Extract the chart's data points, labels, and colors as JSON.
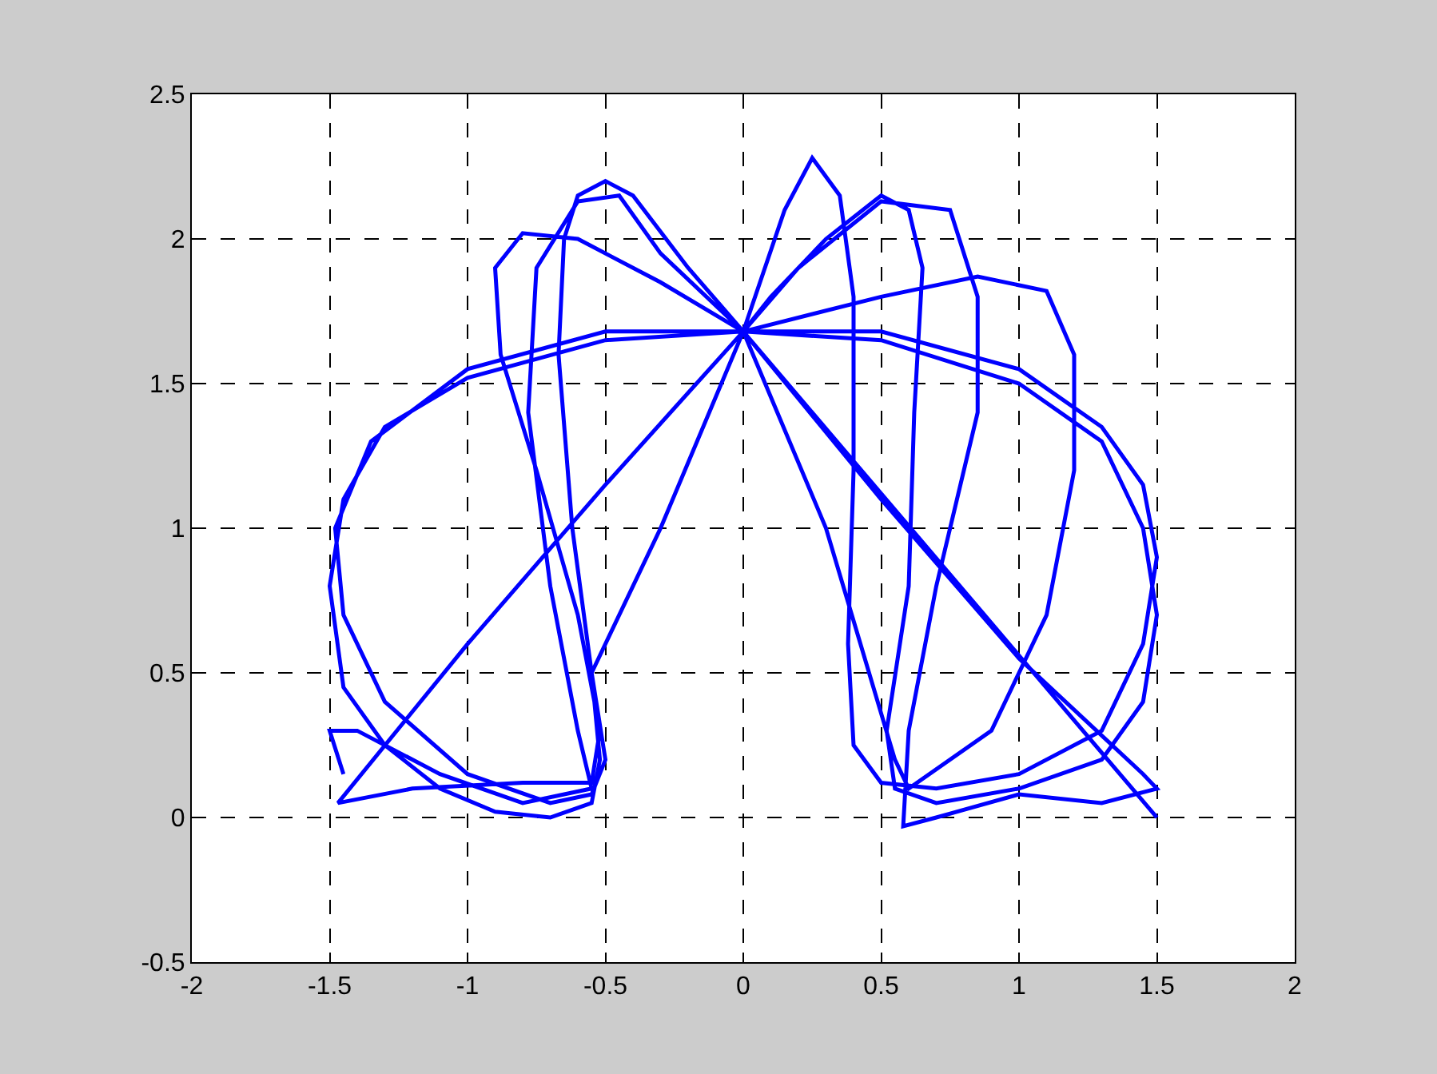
{
  "chart_data": {
    "type": "line",
    "color": "#0000ff",
    "line_style": "solid",
    "marker": "none",
    "grid": true,
    "x": [
      1.5,
      1.0,
      0.5,
      0,
      -0.2,
      -0.4,
      -0.5,
      -0.6,
      -0.65,
      -0.67,
      -0.62,
      -0.55,
      -0.52,
      -0.55,
      -0.7,
      -0.9,
      -1.1,
      -1.3,
      -1.45,
      -1.5,
      -1.45,
      -1.3,
      -1.0,
      -0.5,
      0,
      0.5,
      1.0,
      1.3,
      1.45,
      1.5,
      1.45,
      1.3,
      1.0,
      0.7,
      0.55,
      0.52,
      0.6,
      0.62,
      0.65,
      0.6,
      0.5,
      0.3,
      0.1,
      0,
      -0.5,
      -1.0,
      -1.47,
      -1.2,
      -0.8,
      -0.55,
      -0.52,
      -0.6,
      -0.75,
      -0.88,
      -0.9,
      -0.8,
      -0.6,
      -0.3,
      0,
      0.15,
      0.25,
      0.35,
      0.4,
      0.4,
      0.38,
      0.4,
      0.5,
      0.7,
      1.0,
      1.3,
      1.45,
      1.5,
      1.45,
      1.3,
      1.0,
      0.5,
      0,
      0.5,
      0.85,
      1.1,
      1.2,
      1.2,
      1.1,
      0.9,
      0.6,
      0.55,
      0.3,
      0,
      -0.5,
      -1.0,
      -1.35,
      -1.48,
      -1.45,
      -1.3,
      -1.0,
      -0.7,
      -0.55,
      -0.5,
      -0.55,
      -0.3,
      0,
      0.2,
      0.5,
      0.75,
      0.85,
      0.85,
      0.7,
      0.6,
      0.58,
      0.7,
      1.0,
      1.3,
      1.5,
      1.45,
      1.0,
      0.5,
      0,
      -0.3,
      -0.45,
      -0.6,
      -0.75,
      -0.78,
      -0.7,
      -0.6,
      -0.55,
      -0.8,
      -1.1,
      -1.4,
      -1.5,
      -1.45
    ],
    "values": [
      0,
      0.56,
      1.12,
      1.68,
      1.9,
      2.15,
      2.2,
      2.15,
      2.0,
      1.6,
      1.0,
      0.5,
      0.2,
      0.05,
      0,
      0.02,
      0.1,
      0.25,
      0.45,
      0.8,
      1.1,
      1.35,
      1.52,
      1.65,
      1.68,
      1.65,
      1.5,
      1.3,
      1.0,
      0.7,
      0.4,
      0.2,
      0.1,
      0.05,
      0.1,
      0.3,
      0.8,
      1.4,
      1.9,
      2.1,
      2.15,
      2.0,
      1.8,
      1.68,
      1.15,
      0.6,
      0.05,
      0.1,
      0.12,
      0.12,
      0.3,
      0.7,
      1.2,
      1.6,
      1.9,
      2.02,
      2.0,
      1.85,
      1.68,
      2.1,
      2.28,
      2.15,
      1.8,
      1.2,
      0.6,
      0.25,
      0.12,
      0.1,
      0.15,
      0.3,
      0.6,
      0.9,
      1.15,
      1.35,
      1.55,
      1.68,
      1.68,
      1.8,
      1.87,
      1.82,
      1.6,
      1.2,
      0.7,
      0.3,
      0.1,
      0.2,
      1.0,
      1.68,
      1.68,
      1.55,
      1.3,
      1.0,
      0.7,
      0.4,
      0.15,
      0.05,
      0.08,
      0.2,
      0.5,
      1.0,
      1.68,
      1.9,
      2.13,
      2.1,
      1.8,
      1.4,
      0.8,
      0.3,
      -0.03,
      0,
      0.08,
      0.05,
      0.1,
      0.15,
      0.55,
      1.1,
      1.68,
      1.95,
      2.15,
      2.13,
      1.9,
      1.4,
      0.8,
      0.3,
      0.1,
      0.05,
      0.15,
      0.3,
      0.3,
      0.15
    ],
    "xlim": [
      -2,
      2
    ],
    "xticks": [
      -2,
      -1.5,
      -1,
      -0.5,
      0,
      0.5,
      1,
      1.5,
      2
    ],
    "ylim": [
      -0.5,
      2.5
    ],
    "yticks": [
      -0.5,
      0,
      0.5,
      1,
      1.5,
      2,
      2.5
    ]
  }
}
